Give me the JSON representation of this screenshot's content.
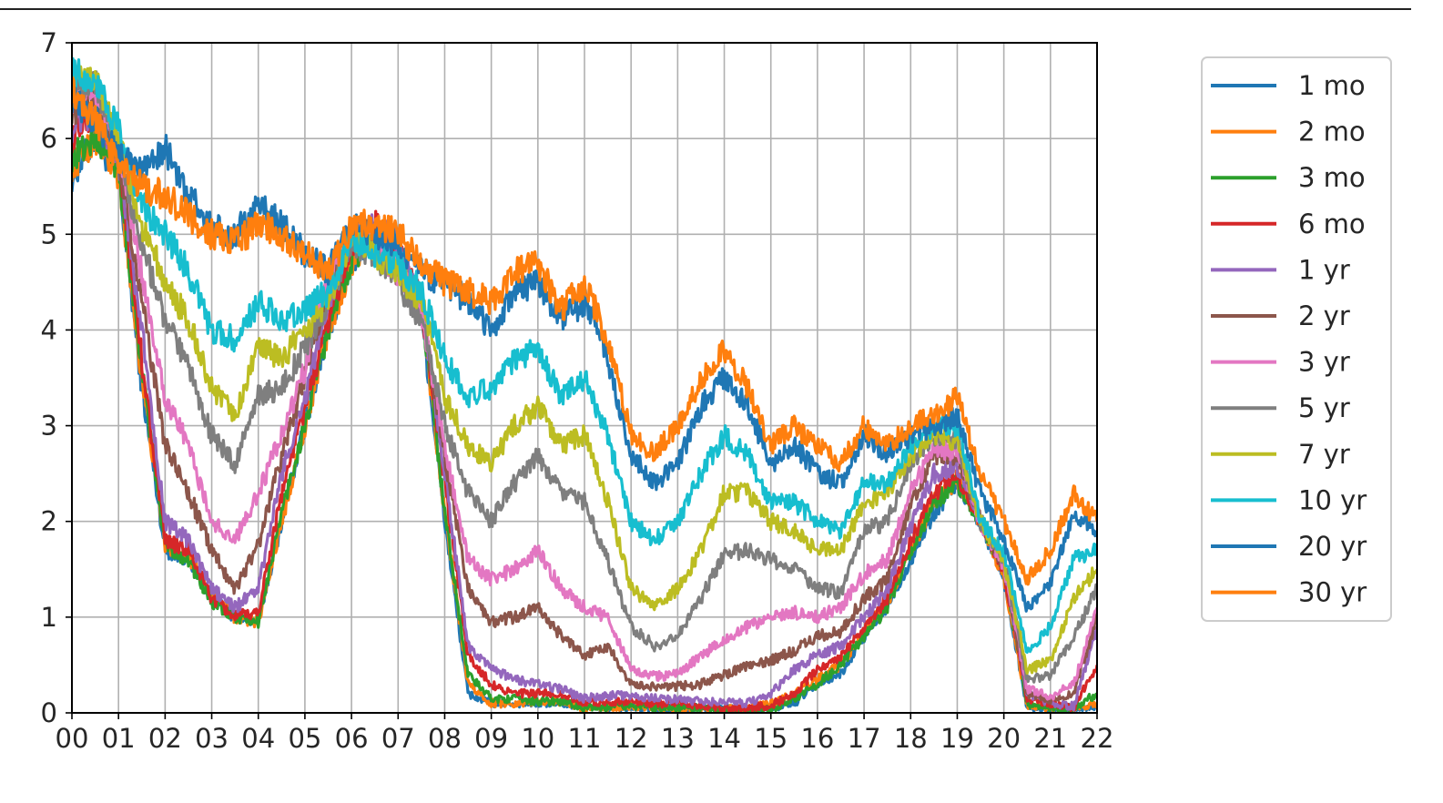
{
  "chart_data": {
    "type": "line",
    "title": "",
    "xlabel": "",
    "ylabel": "",
    "xlim": [
      2000,
      2022
    ],
    "ylim": [
      0,
      7
    ],
    "x_ticks": [
      2000,
      2001,
      2002,
      2003,
      2004,
      2005,
      2006,
      2007,
      2008,
      2009,
      2010,
      2011,
      2012,
      2013,
      2014,
      2015,
      2016,
      2017,
      2018,
      2019,
      2020,
      2021,
      2022
    ],
    "x_tick_labels": [
      "00",
      "01",
      "02",
      "03",
      "04",
      "05",
      "06",
      "07",
      "08",
      "09",
      "10",
      "11",
      "12",
      "13",
      "14",
      "15",
      "16",
      "17",
      "18",
      "19",
      "20",
      "21",
      "22"
    ],
    "y_ticks": [
      0,
      1,
      2,
      3,
      4,
      5,
      6,
      7
    ],
    "y_tick_labels": [
      "0",
      "1",
      "2",
      "3",
      "4",
      "5",
      "6",
      "7"
    ],
    "grid": true,
    "legend_position": "right, outside plot",
    "x": [
      2000.0,
      2000.5,
      2001.0,
      2001.5,
      2002.0,
      2002.5,
      2003.0,
      2003.5,
      2004.0,
      2004.5,
      2005.0,
      2005.5,
      2006.0,
      2006.5,
      2007.0,
      2007.5,
      2008.0,
      2008.5,
      2009.0,
      2009.5,
      2010.0,
      2010.5,
      2011.0,
      2011.5,
      2012.0,
      2012.5,
      2013.0,
      2013.5,
      2014.0,
      2014.5,
      2015.0,
      2015.5,
      2016.0,
      2016.5,
      2017.0,
      2017.5,
      2018.0,
      2018.5,
      2019.0,
      2019.5,
      2020.0,
      2020.5,
      2021.0,
      2021.5,
      2022.0
    ],
    "series": [
      {
        "name": "1 mo",
        "color": "#1f77b4",
        "values": [
          5.6,
          6.0,
          5.6,
          3.4,
          1.7,
          1.6,
          1.2,
          1.0,
          0.95,
          2.0,
          3.0,
          4.0,
          4.7,
          5.0,
          4.7,
          4.2,
          2.0,
          0.2,
          0.1,
          0.1,
          0.1,
          0.1,
          0.05,
          0.05,
          0.05,
          0.05,
          0.05,
          0.05,
          0.05,
          0.05,
          0.05,
          0.1,
          0.3,
          0.4,
          0.8,
          1.1,
          1.6,
          2.1,
          2.4,
          2.0,
          1.4,
          0.05,
          0.05,
          0.05,
          0.05
        ]
      },
      {
        "name": "2 mo",
        "color": "#ff7f0e",
        "values": [
          5.7,
          6.0,
          5.6,
          3.5,
          1.75,
          1.65,
          1.2,
          1.0,
          0.95,
          2.0,
          3.0,
          4.0,
          4.7,
          5.0,
          4.7,
          4.25,
          2.1,
          0.3,
          0.1,
          0.1,
          0.12,
          0.12,
          0.05,
          0.05,
          0.07,
          0.06,
          0.05,
          0.05,
          0.04,
          0.04,
          0.1,
          0.2,
          0.35,
          0.5,
          0.85,
          1.15,
          1.7,
          2.2,
          2.45,
          2.0,
          1.4,
          0.08,
          0.05,
          0.05,
          0.1
        ]
      },
      {
        "name": "3 mo",
        "color": "#2ca02c",
        "values": [
          5.8,
          6.0,
          5.7,
          3.6,
          1.75,
          1.6,
          1.15,
          1.0,
          0.95,
          2.1,
          3.0,
          4.0,
          4.75,
          5.0,
          4.7,
          4.3,
          2.1,
          0.4,
          0.15,
          0.15,
          0.12,
          0.12,
          0.05,
          0.05,
          0.08,
          0.06,
          0.05,
          0.05,
          0.03,
          0.03,
          0.04,
          0.15,
          0.3,
          0.5,
          0.8,
          1.1,
          1.7,
          2.2,
          2.4,
          2.0,
          1.5,
          0.1,
          0.05,
          0.05,
          0.2
        ]
      },
      {
        "name": "6 mo",
        "color": "#d62728",
        "values": [
          6.0,
          6.3,
          5.8,
          3.7,
          1.8,
          1.7,
          1.2,
          1.0,
          1.05,
          2.3,
          3.2,
          4.1,
          4.9,
          5.1,
          4.8,
          4.3,
          2.4,
          0.6,
          0.3,
          0.2,
          0.2,
          0.2,
          0.1,
          0.12,
          0.12,
          0.1,
          0.1,
          0.08,
          0.05,
          0.05,
          0.08,
          0.2,
          0.45,
          0.6,
          0.9,
          1.2,
          1.8,
          2.3,
          2.5,
          2.0,
          1.5,
          0.15,
          0.1,
          0.05,
          0.5
        ]
      },
      {
        "name": "1 yr",
        "color": "#9467bd",
        "values": [
          6.1,
          6.3,
          5.8,
          4.0,
          2.0,
          1.8,
          1.3,
          1.1,
          1.3,
          2.5,
          3.3,
          4.3,
          5.0,
          5.1,
          4.9,
          4.3,
          2.5,
          0.7,
          0.45,
          0.35,
          0.3,
          0.25,
          0.15,
          0.18,
          0.18,
          0.15,
          0.14,
          0.12,
          0.11,
          0.1,
          0.2,
          0.45,
          0.6,
          0.7,
          1.0,
          1.3,
          1.95,
          2.5,
          2.6,
          2.0,
          1.55,
          0.2,
          0.1,
          0.07,
          0.9
        ]
      },
      {
        "name": "2 yr",
        "color": "#8c564b",
        "values": [
          6.3,
          6.4,
          5.8,
          4.3,
          2.8,
          2.3,
          1.7,
          1.3,
          1.75,
          2.7,
          3.5,
          4.5,
          5.0,
          5.0,
          4.6,
          4.2,
          2.7,
          1.3,
          0.95,
          1.0,
          1.1,
          0.8,
          0.6,
          0.7,
          0.3,
          0.27,
          0.28,
          0.3,
          0.4,
          0.5,
          0.55,
          0.65,
          0.8,
          0.85,
          1.2,
          1.4,
          2.2,
          2.7,
          2.7,
          2.0,
          1.55,
          0.2,
          0.13,
          0.2,
          1.0
        ]
      },
      {
        "name": "3 yr",
        "color": "#e377c2",
        "values": [
          6.4,
          6.5,
          5.9,
          4.6,
          3.3,
          2.8,
          2.0,
          1.8,
          2.3,
          2.9,
          3.6,
          4.6,
          5.0,
          4.9,
          4.6,
          4.2,
          2.8,
          1.6,
          1.4,
          1.5,
          1.7,
          1.3,
          1.1,
          1.0,
          0.45,
          0.38,
          0.4,
          0.6,
          0.75,
          0.9,
          1.0,
          1.05,
          1.0,
          1.1,
          1.45,
          1.6,
          2.3,
          2.75,
          2.75,
          2.0,
          1.55,
          0.25,
          0.17,
          0.3,
          1.1
        ]
      },
      {
        "name": "5 yr",
        "color": "#7f7f7f",
        "values": [
          6.5,
          6.6,
          5.9,
          4.9,
          4.1,
          3.6,
          2.9,
          2.6,
          3.3,
          3.4,
          3.8,
          4.3,
          4.9,
          4.8,
          4.5,
          4.1,
          3.0,
          2.3,
          2.0,
          2.4,
          2.7,
          2.3,
          2.2,
          1.6,
          0.9,
          0.7,
          0.8,
          1.2,
          1.65,
          1.7,
          1.6,
          1.5,
          1.3,
          1.25,
          1.9,
          2.0,
          2.6,
          2.9,
          2.85,
          2.0,
          1.6,
          0.35,
          0.4,
          0.8,
          1.3
        ]
      },
      {
        "name": "7 yr",
        "color": "#bcbd22",
        "values": [
          6.6,
          6.6,
          6.0,
          5.1,
          4.5,
          4.1,
          3.4,
          3.1,
          3.8,
          3.7,
          4.0,
          4.3,
          5.0,
          4.8,
          4.6,
          4.3,
          3.3,
          2.8,
          2.6,
          3.0,
          3.2,
          2.8,
          2.9,
          2.2,
          1.3,
          1.1,
          1.3,
          1.7,
          2.3,
          2.3,
          2.0,
          1.9,
          1.7,
          1.7,
          2.2,
          2.3,
          2.7,
          2.9,
          2.85,
          2.0,
          1.6,
          0.45,
          0.55,
          1.2,
          1.5
        ]
      },
      {
        "name": "10 yr",
        "color": "#17becf",
        "values": [
          6.7,
          6.6,
          6.1,
          5.3,
          5.0,
          4.6,
          4.0,
          3.9,
          4.3,
          4.1,
          4.2,
          4.4,
          5.0,
          4.8,
          4.7,
          4.4,
          3.7,
          3.3,
          3.4,
          3.7,
          3.8,
          3.3,
          3.5,
          2.9,
          2.0,
          1.8,
          2.0,
          2.5,
          2.9,
          2.7,
          2.2,
          2.2,
          2.0,
          1.9,
          2.4,
          2.4,
          2.8,
          3.0,
          3.0,
          2.0,
          1.7,
          0.65,
          0.9,
          1.6,
          1.7
        ]
      },
      {
        "name": "20 yr",
        "color": "#1f77b4",
        "values": [
          6.4,
          6.2,
          5.8,
          5.7,
          5.9,
          5.4,
          5.1,
          5.0,
          5.3,
          5.1,
          4.8,
          4.6,
          5.1,
          5.0,
          4.9,
          4.6,
          4.5,
          4.3,
          4.0,
          4.4,
          4.5,
          4.1,
          4.3,
          3.7,
          2.7,
          2.4,
          2.6,
          3.2,
          3.5,
          3.2,
          2.6,
          2.8,
          2.5,
          2.4,
          2.9,
          2.7,
          2.9,
          3.0,
          3.1,
          2.3,
          1.8,
          1.1,
          1.35,
          2.1,
          1.9
        ]
      },
      {
        "name": "30 yr",
        "color": "#ff7f0e",
        "values": [
          6.5,
          6.2,
          5.7,
          5.5,
          5.4,
          5.2,
          5.0,
          4.9,
          5.1,
          5.0,
          4.8,
          4.6,
          5.1,
          5.1,
          5.0,
          4.7,
          4.5,
          4.4,
          4.3,
          4.6,
          4.7,
          4.2,
          4.5,
          3.9,
          2.9,
          2.7,
          3.0,
          3.5,
          3.8,
          3.4,
          2.8,
          3.0,
          2.8,
          2.6,
          3.0,
          2.8,
          3.0,
          3.1,
          3.3,
          2.5,
          2.0,
          1.4,
          1.7,
          2.3,
          2.0
        ]
      }
    ]
  }
}
